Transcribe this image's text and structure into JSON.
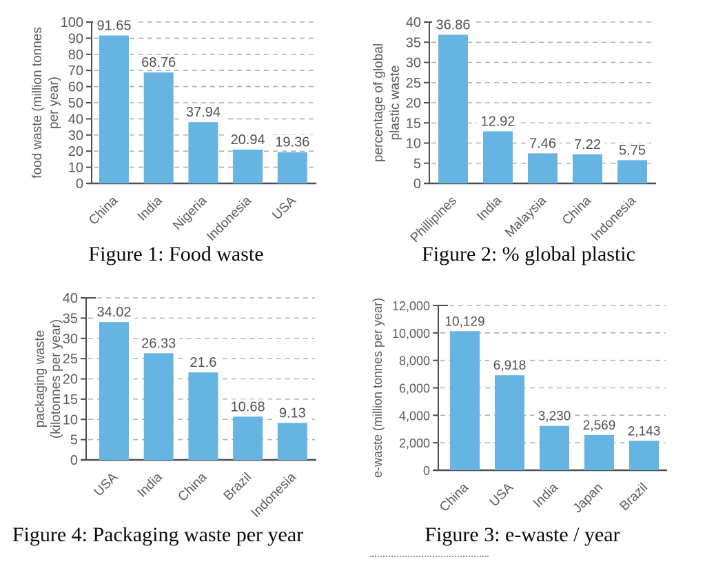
{
  "page": {
    "background": "#ffffff"
  },
  "colors": {
    "bar": "#66b4e2",
    "axis": "#4c4e52",
    "grid": "#b0b0b2",
    "tick_text": "#595b60",
    "value_text": "#4f5156",
    "caption_text": "#0a0a0a"
  },
  "chart_data": [
    {
      "type": "bar",
      "caption": "Figure 1: Food waste",
      "ylabel": "food waste (million tonnes per year)",
      "ylabel_lines": [
        "food waste (million tonnes",
        "per year)"
      ],
      "categories": [
        "China",
        "India",
        "Nigeria",
        "Indonesia",
        "USA"
      ],
      "values": [
        91.65,
        68.76,
        37.94,
        20.94,
        19.36
      ],
      "value_labels": [
        "91.65",
        "68.76",
        "37.94",
        "20.94",
        "19.36"
      ],
      "ylim": [
        0,
        100
      ],
      "yticks": [
        0,
        10,
        20,
        30,
        40,
        50,
        60,
        70,
        80,
        90,
        100
      ],
      "ytick_labels": [
        "0",
        "10",
        "20",
        "30",
        "40",
        "50",
        "60",
        "70",
        "80",
        "90",
        "100"
      ],
      "grid": true,
      "legend": false
    },
    {
      "type": "bar",
      "caption": "Figure 2: % global plastic",
      "ylabel": "percentage of global plastic waste",
      "ylabel_lines": [
        "percentage of global",
        "plastic waste"
      ],
      "categories": [
        "Phillipines",
        "India",
        "Malaysia",
        "China",
        "Indonesia"
      ],
      "values": [
        36.86,
        12.92,
        7.46,
        7.22,
        5.75
      ],
      "value_labels": [
        "36.86",
        "12.92",
        "7.46",
        "7.22",
        "5.75"
      ],
      "ylim": [
        0,
        40
      ],
      "yticks": [
        0,
        5,
        10,
        15,
        20,
        25,
        30,
        35,
        40
      ],
      "ytick_labels": [
        "0",
        "5",
        "10",
        "15",
        "20",
        "25",
        "30",
        "35",
        "40"
      ],
      "grid": true,
      "legend": false
    },
    {
      "type": "bar",
      "caption": "Figure 4: Packaging waste per year",
      "ylabel": "packaging waste (kilotonnes per year)",
      "ylabel_lines": [
        "packaging waste",
        "(kilotonnes per year)"
      ],
      "categories": [
        "USA",
        "India",
        "China",
        "Brazil",
        "Indonesia"
      ],
      "values": [
        34.02,
        26.33,
        21.6,
        10.68,
        9.13
      ],
      "value_labels": [
        "34.02",
        "26.33",
        "21.6",
        "10.68",
        "9.13"
      ],
      "ylim": [
        0,
        40
      ],
      "yticks": [
        0,
        5,
        10,
        15,
        20,
        25,
        30,
        35,
        40
      ],
      "ytick_labels": [
        "0",
        "5",
        "10",
        "15",
        "20",
        "25",
        "30",
        "35",
        "40"
      ],
      "grid": true,
      "legend": false
    },
    {
      "type": "bar",
      "caption": "Figure 3: e-waste / year",
      "ylabel": "e-waste (million tonnes per year)",
      "ylabel_lines": [
        "e-waste (million tonnes per year)"
      ],
      "categories": [
        "China",
        "USA",
        "India",
        "Japan",
        "Brazil"
      ],
      "values": [
        10129,
        6918,
        3230,
        2569,
        2143
      ],
      "value_labels": [
        "10,129",
        "6,918",
        "3,230",
        "2,569",
        "2,143"
      ],
      "ylim": [
        0,
        12000
      ],
      "yticks": [
        0,
        2000,
        4000,
        6000,
        8000,
        10000,
        12000
      ],
      "ytick_labels": [
        "0",
        "2,000",
        "4,000",
        "6,000",
        "8,000",
        "10,000",
        "12,000"
      ],
      "grid": true,
      "legend": false
    }
  ]
}
